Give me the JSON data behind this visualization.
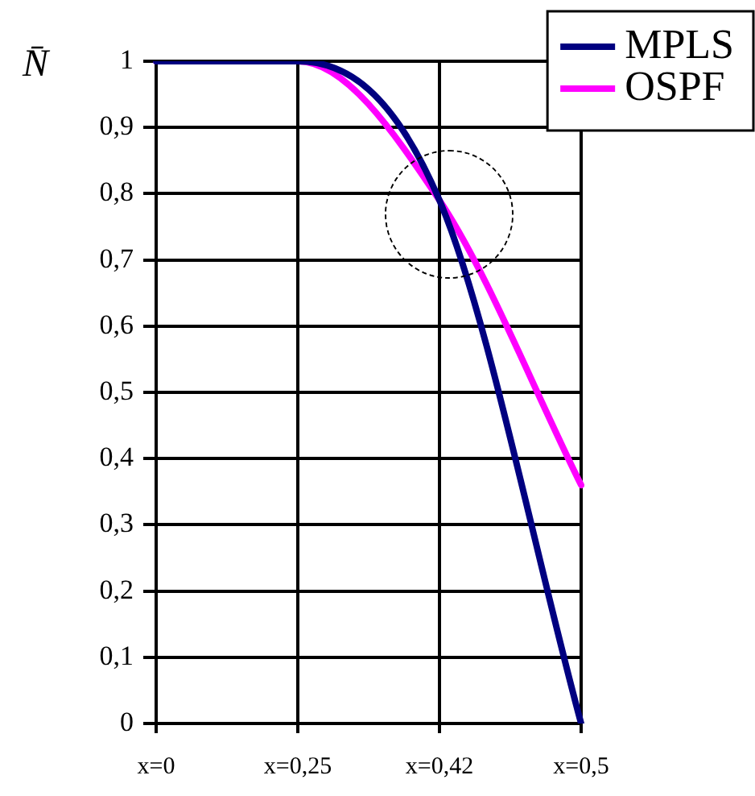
{
  "chart_data": {
    "type": "line",
    "ylabel": "N̄",
    "categories": [
      "x=0",
      "x=0,25",
      "x=0,42",
      "x=0,5"
    ],
    "series": [
      {
        "name": "MPLS",
        "color": "#000080",
        "values": [
          1,
          1,
          0.79,
          0
        ]
      },
      {
        "name": "OSPF",
        "color": "#ff00ff",
        "values": [
          1,
          1,
          0.79,
          0.36
        ]
      }
    ],
    "ylim": [
      0,
      1
    ],
    "yticks": [
      0,
      {
        "value": 0.1,
        "label": "0,1"
      },
      {
        "value": 0.2,
        "label": "0,2"
      },
      {
        "value": 0.3,
        "label": "0,3"
      },
      {
        "value": 0.4,
        "label": "0,4"
      },
      {
        "value": 0.5,
        "label": "0,5"
      },
      {
        "value": 0.6,
        "label": "0,6"
      },
      {
        "value": 0.7,
        "label": "0,7"
      },
      {
        "value": 0.8,
        "label": "0,8"
      },
      {
        "value": 0.9,
        "label": "0,9"
      },
      1
    ],
    "grid": true,
    "legend": "top right",
    "marker": "none",
    "line_style": "solid"
  }
}
